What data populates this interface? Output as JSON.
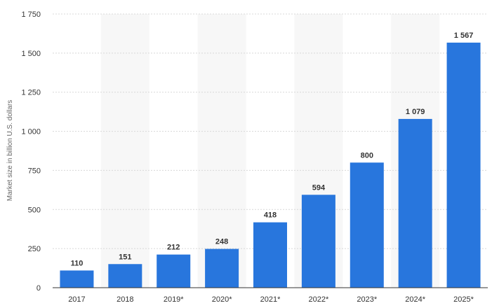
{
  "chart_data": {
    "type": "bar",
    "title": "",
    "xlabel": "",
    "ylabel": "Market size in billion U.S. dollars",
    "categories": [
      "2017",
      "2018",
      "2019*",
      "2020*",
      "2021*",
      "2022*",
      "2023*",
      "2024*",
      "2025*"
    ],
    "values": [
      110,
      151,
      212,
      248,
      418,
      594,
      800,
      1079,
      1567
    ],
    "value_labels": [
      "110",
      "151",
      "212",
      "248",
      "418",
      "594",
      "800",
      "1 079",
      "1 567"
    ],
    "ylim": [
      0,
      1750
    ],
    "yticks": [
      0,
      250,
      500,
      750,
      1000,
      1250,
      1500,
      1750
    ],
    "ytick_labels": [
      "0",
      "250",
      "500",
      "750",
      "1 000",
      "1 250",
      "1 500",
      "1 750"
    ],
    "grid": true,
    "legend": "none",
    "colors": {
      "bar": "#2876dd",
      "grid": "#d8d8d8",
      "band": "#f7f7f7",
      "axis": "#333333"
    }
  }
}
